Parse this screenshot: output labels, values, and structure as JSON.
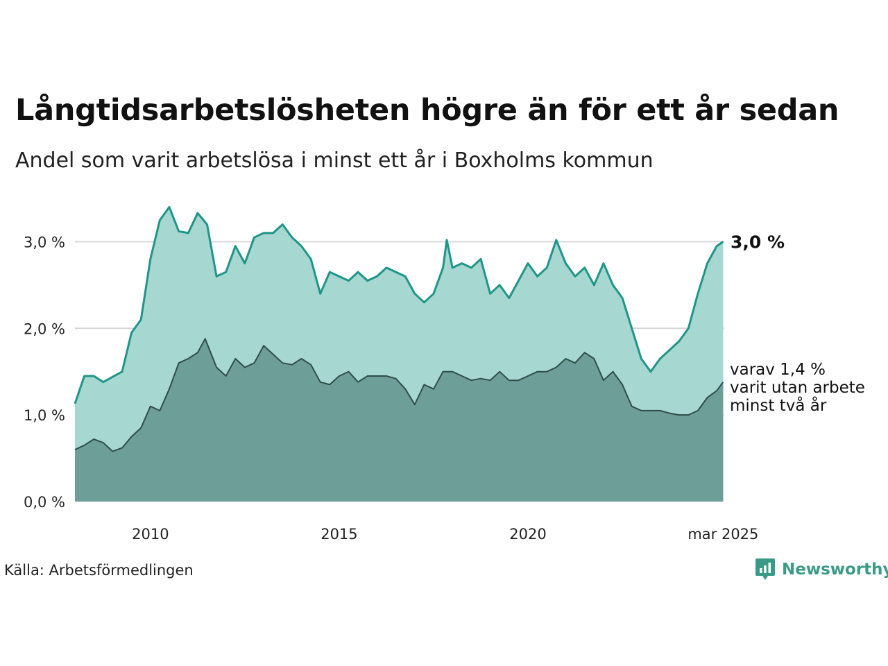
{
  "title": "Långtidsarbetslösheten högre än för ett år sedan",
  "subtitle": "Andel som varit arbetslösa i minst ett år i Boxholms kommun",
  "source": "Källa: Arbetsförmedlingen",
  "brand": "Newsworthy",
  "colors": {
    "upper_line": "#1f9587",
    "upper_fill": "#a6d7d1",
    "lower_line": "#2e4e49",
    "lower_fill": "#6e9e98",
    "grid": "#d6d6d6",
    "brand": "#3a9a86"
  },
  "chart_data": {
    "type": "area",
    "x_axis": {
      "ticks": [
        {
          "x": 2010.0,
          "label": "2010"
        },
        {
          "x": 2015.0,
          "label": "2015"
        },
        {
          "x": 2020.0,
          "label": "2020"
        },
        {
          "x": 2025.17,
          "label": "mar 2025"
        }
      ],
      "range": [
        2008.0,
        2025.2
      ]
    },
    "y_axis": {
      "ticks": [
        {
          "y": 0.0,
          "label": "0,0 %"
        },
        {
          "y": 1.0,
          "label": "1,0 %"
        },
        {
          "y": 2.0,
          "label": "2,0 %"
        },
        {
          "y": 3.0,
          "label": "3,0 %"
        }
      ],
      "range": [
        0.0,
        3.5
      ],
      "grid": true
    },
    "series": [
      {
        "key": "minst_ett_ar",
        "label": "3,0 %",
        "points": [
          [
            2008.0,
            1.13
          ],
          [
            2008.25,
            1.45
          ],
          [
            2008.5,
            1.45
          ],
          [
            2008.75,
            1.38
          ],
          [
            2009.0,
            1.44
          ],
          [
            2009.25,
            1.5
          ],
          [
            2009.5,
            1.95
          ],
          [
            2009.75,
            2.1
          ],
          [
            2010.0,
            2.8
          ],
          [
            2010.25,
            3.25
          ],
          [
            2010.5,
            3.4
          ],
          [
            2010.75,
            3.12
          ],
          [
            2011.0,
            3.1
          ],
          [
            2011.25,
            3.33
          ],
          [
            2011.5,
            3.2
          ],
          [
            2011.75,
            2.6
          ],
          [
            2012.0,
            2.65
          ],
          [
            2012.25,
            2.95
          ],
          [
            2012.5,
            2.75
          ],
          [
            2012.75,
            3.05
          ],
          [
            2013.0,
            3.1
          ],
          [
            2013.25,
            3.1
          ],
          [
            2013.5,
            3.2
          ],
          [
            2013.75,
            3.05
          ],
          [
            2014.0,
            2.95
          ],
          [
            2014.25,
            2.8
          ],
          [
            2014.5,
            2.4
          ],
          [
            2014.75,
            2.65
          ],
          [
            2015.0,
            2.6
          ],
          [
            2015.25,
            2.55
          ],
          [
            2015.5,
            2.65
          ],
          [
            2015.75,
            2.55
          ],
          [
            2016.0,
            2.6
          ],
          [
            2016.25,
            2.7
          ],
          [
            2016.5,
            2.65
          ],
          [
            2016.75,
            2.6
          ],
          [
            2017.0,
            2.4
          ],
          [
            2017.25,
            2.3
          ],
          [
            2017.5,
            2.4
          ],
          [
            2017.75,
            2.7
          ],
          [
            2017.85,
            3.02
          ],
          [
            2018.0,
            2.7
          ],
          [
            2018.25,
            2.75
          ],
          [
            2018.5,
            2.7
          ],
          [
            2018.75,
            2.8
          ],
          [
            2019.0,
            2.4
          ],
          [
            2019.25,
            2.5
          ],
          [
            2019.5,
            2.35
          ],
          [
            2019.75,
            2.55
          ],
          [
            2020.0,
            2.75
          ],
          [
            2020.25,
            2.6
          ],
          [
            2020.5,
            2.7
          ],
          [
            2020.75,
            3.02
          ],
          [
            2021.0,
            2.75
          ],
          [
            2021.25,
            2.6
          ],
          [
            2021.5,
            2.7
          ],
          [
            2021.75,
            2.5
          ],
          [
            2022.0,
            2.75
          ],
          [
            2022.25,
            2.5
          ],
          [
            2022.5,
            2.35
          ],
          [
            2022.75,
            2.0
          ],
          [
            2023.0,
            1.65
          ],
          [
            2023.25,
            1.5
          ],
          [
            2023.5,
            1.65
          ],
          [
            2023.75,
            1.75
          ],
          [
            2024.0,
            1.85
          ],
          [
            2024.25,
            2.0
          ],
          [
            2024.5,
            2.4
          ],
          [
            2024.75,
            2.75
          ],
          [
            2025.0,
            2.95
          ],
          [
            2025.17,
            3.0
          ]
        ]
      },
      {
        "key": "minst_tva_ar",
        "label_lines": [
          "varav 1,4 %",
          "varit utan arbete",
          "minst två år"
        ],
        "points": [
          [
            2008.0,
            0.6
          ],
          [
            2008.25,
            0.65
          ],
          [
            2008.5,
            0.72
          ],
          [
            2008.75,
            0.68
          ],
          [
            2009.0,
            0.58
          ],
          [
            2009.25,
            0.62
          ],
          [
            2009.5,
            0.75
          ],
          [
            2009.75,
            0.85
          ],
          [
            2010.0,
            1.1
          ],
          [
            2010.25,
            1.05
          ],
          [
            2010.5,
            1.3
          ],
          [
            2010.75,
            1.6
          ],
          [
            2011.0,
            1.65
          ],
          [
            2011.25,
            1.72
          ],
          [
            2011.45,
            1.88
          ],
          [
            2011.75,
            1.55
          ],
          [
            2012.0,
            1.45
          ],
          [
            2012.25,
            1.65
          ],
          [
            2012.5,
            1.55
          ],
          [
            2012.75,
            1.6
          ],
          [
            2013.0,
            1.8
          ],
          [
            2013.25,
            1.7
          ],
          [
            2013.5,
            1.6
          ],
          [
            2013.75,
            1.58
          ],
          [
            2014.0,
            1.65
          ],
          [
            2014.25,
            1.58
          ],
          [
            2014.5,
            1.38
          ],
          [
            2014.75,
            1.35
          ],
          [
            2015.0,
            1.45
          ],
          [
            2015.25,
            1.5
          ],
          [
            2015.5,
            1.38
          ],
          [
            2015.75,
            1.45
          ],
          [
            2016.0,
            1.45
          ],
          [
            2016.25,
            1.45
          ],
          [
            2016.5,
            1.42
          ],
          [
            2016.75,
            1.3
          ],
          [
            2017.0,
            1.12
          ],
          [
            2017.25,
            1.35
          ],
          [
            2017.5,
            1.3
          ],
          [
            2017.75,
            1.5
          ],
          [
            2018.0,
            1.5
          ],
          [
            2018.25,
            1.45
          ],
          [
            2018.5,
            1.4
          ],
          [
            2018.75,
            1.42
          ],
          [
            2019.0,
            1.4
          ],
          [
            2019.25,
            1.5
          ],
          [
            2019.5,
            1.4
          ],
          [
            2019.75,
            1.4
          ],
          [
            2020.0,
            1.45
          ],
          [
            2020.25,
            1.5
          ],
          [
            2020.5,
            1.5
          ],
          [
            2020.75,
            1.55
          ],
          [
            2021.0,
            1.65
          ],
          [
            2021.25,
            1.6
          ],
          [
            2021.5,
            1.72
          ],
          [
            2021.75,
            1.65
          ],
          [
            2022.0,
            1.4
          ],
          [
            2022.25,
            1.5
          ],
          [
            2022.5,
            1.35
          ],
          [
            2022.75,
            1.1
          ],
          [
            2023.0,
            1.05
          ],
          [
            2023.25,
            1.05
          ],
          [
            2023.5,
            1.05
          ],
          [
            2023.75,
            1.02
          ],
          [
            2024.0,
            1.0
          ],
          [
            2024.25,
            1.0
          ],
          [
            2024.5,
            1.05
          ],
          [
            2024.75,
            1.2
          ],
          [
            2025.0,
            1.28
          ],
          [
            2025.17,
            1.38
          ]
        ]
      }
    ]
  }
}
